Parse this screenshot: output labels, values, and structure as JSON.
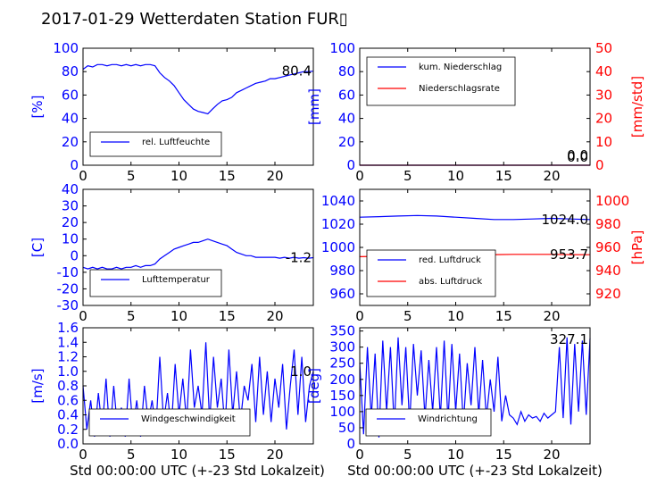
{
  "title": "2017-01-29 Wetterdaten Station FUR▯",
  "xlabel": "Std 00:00:00 UTC (+-23 Std Lokalzeit)",
  "colors": {
    "blue": "#0000ff",
    "red": "#ff0000",
    "black": "#000000"
  },
  "chart_data": [
    {
      "id": "humidity",
      "type": "line",
      "ylabel": "[%]",
      "xlim": [
        0,
        24
      ],
      "ylim": [
        0,
        100
      ],
      "xticks": [
        "0",
        "5",
        "10",
        "15",
        "20"
      ],
      "yticks": [
        "0",
        "20",
        "40",
        "60",
        "80",
        "100"
      ],
      "legend": {
        "placement": "lower-left",
        "entries": [
          "rel. Luftfeuchte"
        ]
      },
      "last_value": "80.4",
      "series": [
        {
          "name": "rel. Luftfeuchte",
          "color": "#0000ff",
          "axis": "left",
          "x": [
            0,
            0.5,
            1,
            1.5,
            2,
            2.5,
            3,
            3.5,
            4,
            4.5,
            5,
            5.5,
            6,
            6.5,
            7,
            7.5,
            8,
            8.5,
            9,
            9.5,
            10,
            10.5,
            11,
            11.5,
            12,
            12.5,
            13,
            13.5,
            14,
            14.5,
            15,
            15.5,
            16,
            16.5,
            17,
            17.5,
            18,
            18.5,
            19,
            19.5,
            20,
            20.5,
            21,
            21.5,
            22,
            22.5,
            23,
            23.5,
            24
          ],
          "y": [
            82,
            85,
            84,
            86,
            86,
            85,
            86,
            86,
            85,
            86,
            85,
            86,
            85,
            86,
            86,
            85,
            79,
            75,
            72,
            68,
            62,
            56,
            52,
            48,
            46,
            45,
            44,
            48,
            52,
            55,
            56,
            58,
            62,
            64,
            66,
            68,
            70,
            71,
            72,
            74,
            74,
            75,
            76,
            77,
            78,
            79,
            80,
            80,
            80.4
          ]
        }
      ]
    },
    {
      "id": "precipitation",
      "type": "line",
      "ylabel": "[mm]",
      "ylabel_right": "[mm/std]",
      "xlim": [
        0,
        24
      ],
      "ylim": [
        0,
        100
      ],
      "ylim_right": [
        0,
        50
      ],
      "xticks": [
        "0",
        "5",
        "10",
        "15",
        "20"
      ],
      "yticks": [
        "0",
        "20",
        "40",
        "60",
        "80",
        "100"
      ],
      "yticks_right": [
        "0",
        "10",
        "20",
        "30",
        "40",
        "50"
      ],
      "legend": {
        "placement": "upper-left",
        "entries": [
          "kum. Niederschlag",
          "Niederschlagsrate"
        ]
      },
      "last_value": "0.0",
      "last_value_right": "0.0",
      "series": [
        {
          "name": "kum. Niederschlag",
          "color": "#0000ff",
          "axis": "left",
          "x": [
            0,
            24
          ],
          "y": [
            0,
            0
          ]
        },
        {
          "name": "Niederschlagsrate",
          "color": "#ff0000",
          "axis": "right",
          "x": [
            0,
            24
          ],
          "y": [
            0,
            0
          ]
        }
      ]
    },
    {
      "id": "temperature",
      "type": "line",
      "ylabel": "[C]",
      "xlim": [
        0,
        24
      ],
      "ylim": [
        -30,
        40
      ],
      "xticks": [
        "0",
        "5",
        "10",
        "15",
        "20"
      ],
      "yticks": [
        "-30",
        "-20",
        "-10",
        "0",
        "10",
        "20",
        "30",
        "40"
      ],
      "legend": {
        "placement": "lower-left",
        "entries": [
          "Lufttemperatur"
        ]
      },
      "last_value": "-1.2",
      "series": [
        {
          "name": "Lufttemperatur",
          "color": "#0000ff",
          "axis": "left",
          "x": [
            0,
            0.5,
            1,
            1.5,
            2,
            2.5,
            3,
            3.5,
            4,
            4.5,
            5,
            5.5,
            6,
            6.5,
            7,
            7.5,
            8,
            8.5,
            9,
            9.5,
            10,
            10.5,
            11,
            11.5,
            12,
            12.5,
            13,
            13.5,
            14,
            14.5,
            15,
            15.5,
            16,
            16.5,
            17,
            17.5,
            18,
            18.5,
            19,
            19.5,
            20,
            20.5,
            21,
            21.5,
            22,
            22.5,
            23,
            23.5,
            24
          ],
          "y": [
            -7,
            -8,
            -7,
            -8,
            -7,
            -8,
            -8,
            -7,
            -8,
            -7,
            -7,
            -6,
            -7,
            -6,
            -6,
            -5,
            -2,
            0,
            2,
            4,
            5,
            6,
            7,
            8,
            8,
            9,
            10,
            9,
            8,
            7,
            6,
            4,
            2,
            1,
            0,
            0,
            -1,
            -1,
            -1,
            -1,
            -1,
            -1.5,
            -1,
            -1.5,
            -1,
            -1.5,
            -1.2,
            -1.5,
            -1.2
          ]
        }
      ]
    },
    {
      "id": "pressure",
      "type": "line",
      "ylabel": "",
      "ylabel_right": "[hPa]",
      "xlim": [
        0,
        24
      ],
      "ylim": [
        950,
        1050
      ],
      "ylim_right": [
        910,
        1010
      ],
      "xticks": [
        "0",
        "5",
        "10",
        "15",
        "20"
      ],
      "yticks": [
        "960",
        "980",
        "1000",
        "1020",
        "1040"
      ],
      "yticks_right": [
        "920",
        "940",
        "960",
        "980",
        "1000"
      ],
      "legend": {
        "placement": "lower-left",
        "entries": [
          "red. Luftdruck",
          "abs. Luftdruck"
        ]
      },
      "last_value": "1024.0",
      "last_value_right": "953.7",
      "series": [
        {
          "name": "red. Luftdruck",
          "color": "#0000ff",
          "axis": "left",
          "x": [
            0,
            2,
            4,
            6,
            8,
            10,
            12,
            14,
            16,
            18,
            20,
            22,
            24
          ],
          "y": [
            1026,
            1026.5,
            1027,
            1027.5,
            1027,
            1026,
            1025,
            1024,
            1024,
            1024.5,
            1025,
            1024.5,
            1024
          ]
        },
        {
          "name": "abs. Luftdruck",
          "color": "#ff0000",
          "axis": "right",
          "x": [
            0,
            2,
            4,
            6,
            8,
            10,
            12,
            14,
            16,
            18,
            20,
            22,
            24
          ],
          "y": [
            952,
            952.3,
            952.7,
            953,
            953,
            953.2,
            953.5,
            953.8,
            954,
            954,
            954,
            953.8,
            953.7
          ]
        }
      ]
    },
    {
      "id": "windspeed",
      "type": "line",
      "ylabel": "[m/s]",
      "xlim": [
        0,
        24
      ],
      "ylim": [
        0,
        1.6
      ],
      "xticks": [
        "0",
        "5",
        "10",
        "15",
        "20"
      ],
      "yticks": [
        "0.0",
        "0.2",
        "0.4",
        "0.6",
        "0.8",
        "1.0",
        "1.2",
        "1.4",
        "1.6"
      ],
      "legend": {
        "placement": "lower-center",
        "entries": [
          "Windgeschwindigkeit"
        ]
      },
      "last_value": "1.0",
      "series": [
        {
          "name": "Windgeschwindigkeit",
          "color": "#0000ff",
          "axis": "left",
          "x": [
            0,
            0.4,
            0.8,
            1.2,
            1.6,
            2,
            2.4,
            2.8,
            3.2,
            3.6,
            4,
            4.4,
            4.8,
            5.2,
            5.6,
            6,
            6.4,
            6.8,
            7.2,
            7.6,
            8,
            8.4,
            8.8,
            9.2,
            9.6,
            10,
            10.4,
            10.8,
            11.2,
            11.6,
            12,
            12.4,
            12.8,
            13.2,
            13.6,
            14,
            14.4,
            14.8,
            15.2,
            15.6,
            16,
            16.4,
            16.8,
            17.2,
            17.6,
            18,
            18.4,
            18.8,
            19.2,
            19.6,
            20,
            20.4,
            20.8,
            21.2,
            21.6,
            22,
            22.4,
            22.8,
            23.2,
            23.6,
            24
          ],
          "y": [
            0.8,
            0.2,
            0.6,
            0.1,
            0.7,
            0.2,
            0.9,
            0.1,
            0.8,
            0.2,
            0.5,
            0.1,
            0.9,
            0.2,
            0.6,
            0.1,
            0.8,
            0.3,
            0.6,
            0.2,
            1.2,
            0.3,
            0.7,
            0.2,
            1.1,
            0.4,
            0.9,
            0.3,
            1.3,
            0.5,
            0.8,
            0.4,
            1.4,
            0.3,
            1.2,
            0.5,
            0.9,
            0.2,
            1.3,
            0.4,
            1.0,
            0.3,
            0.8,
            0.6,
            1.1,
            0.3,
            1.2,
            0.4,
            1.0,
            0.3,
            0.9,
            0.5,
            1.1,
            0.2,
            0.8,
            1.3,
            0.4,
            1.2,
            0.3,
            0.8,
            1.0
          ]
        }
      ]
    },
    {
      "id": "winddirection",
      "type": "line",
      "ylabel": "[deg]",
      "xlim": [
        0,
        24
      ],
      "ylim": [
        0,
        360
      ],
      "xticks": [
        "0",
        "5",
        "10",
        "15",
        "20"
      ],
      "yticks": [
        "0",
        "50",
        "100",
        "150",
        "200",
        "250",
        "300",
        "350"
      ],
      "legend": {
        "placement": "lower-center",
        "entries": [
          "Windrichtung"
        ]
      },
      "last_value": "327.1",
      "series": [
        {
          "name": "Windrichtung",
          "color": "#0000ff",
          "axis": "left",
          "x": [
            0,
            0.4,
            0.8,
            1.2,
            1.6,
            2,
            2.4,
            2.8,
            3.2,
            3.6,
            4,
            4.4,
            4.8,
            5.2,
            5.6,
            6,
            6.4,
            6.8,
            7.2,
            7.6,
            8,
            8.4,
            8.8,
            9.2,
            9.6,
            10,
            10.4,
            10.8,
            11.2,
            11.6,
            12,
            12.4,
            12.8,
            13.2,
            13.6,
            14,
            14.4,
            14.8,
            15.2,
            15.6,
            16,
            16.4,
            16.8,
            17.2,
            17.6,
            18,
            18.4,
            18.8,
            19.2,
            19.6,
            20,
            20.4,
            20.8,
            21.2,
            21.6,
            22,
            22.4,
            22.8,
            23.2,
            23.6,
            24
          ],
          "y": [
            250,
            30,
            300,
            80,
            280,
            20,
            320,
            100,
            300,
            50,
            330,
            120,
            300,
            60,
            310,
            150,
            290,
            80,
            260,
            100,
            300,
            80,
            320,
            70,
            310,
            100,
            280,
            60,
            250,
            120,
            300,
            90,
            260,
            80,
            200,
            100,
            270,
            70,
            150,
            90,
            80,
            60,
            100,
            70,
            90,
            80,
            85,
            70,
            95,
            80,
            90,
            100,
            300,
            80,
            330,
            60,
            310,
            100,
            320,
            90,
            327.1
          ]
        }
      ]
    }
  ]
}
